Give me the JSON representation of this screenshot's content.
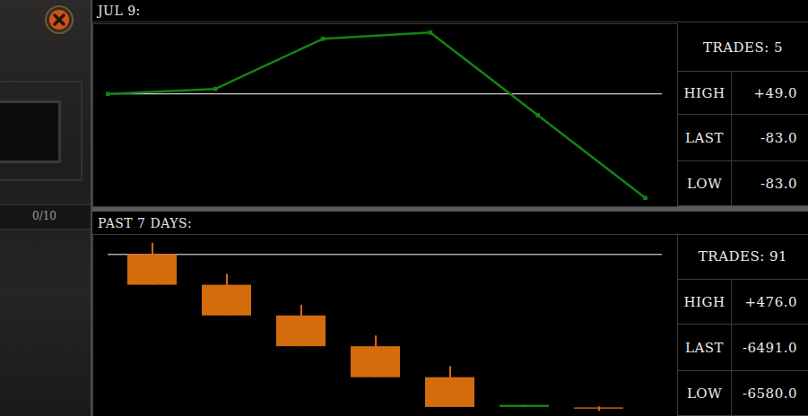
{
  "sidebar": {
    "counter": "0/10"
  },
  "chart_data": [
    {
      "type": "line",
      "title": "JUL 9:",
      "x": [
        0,
        1,
        2,
        3,
        4,
        5
      ],
      "values": [
        0,
        4,
        44,
        49,
        -17,
        -83
      ],
      "xlim": [
        -0.14,
        5.3
      ],
      "xticks": [],
      "ylim": [
        -90,
        56
      ],
      "yticks": [
        0
      ],
      "grid": true,
      "tick_labels": false,
      "color": "#138413",
      "marker": "square"
    },
    {
      "type": "candlestick",
      "title": "PAST 7 DAYS:",
      "categories": [
        null,
        null,
        null,
        null,
        null,
        null,
        null
      ],
      "open": [
        0,
        -1290,
        -2580,
        -3870,
        -5170,
        -6420,
        -6440
      ],
      "close": [
        -1290,
        -2580,
        -3870,
        -5170,
        -6420,
        -6330,
        -6491
      ],
      "high": [
        476,
        -836,
        -2130,
        -3420,
        -4710,
        -6330,
        -6400
      ],
      "low": [
        -1290,
        -2580,
        -3870,
        -5170,
        -6420,
        -6420,
        -6580
      ],
      "colors": [
        "#d46b0d",
        "#d46b0d",
        "#d46b0d",
        "#d46b0d",
        "#d46b0d",
        "#168a16",
        "#d46b0d"
      ],
      "ylim": [
        -6800,
        840
      ],
      "yticks": [
        0
      ],
      "grid": true,
      "tick_labels": false
    }
  ],
  "tables": [
    {
      "trades": "TRADES: 5",
      "rows": [
        [
          "HIGH",
          "+49.0"
        ],
        [
          "LAST",
          "-83.0"
        ],
        [
          "LOW",
          "-83.0"
        ]
      ]
    },
    {
      "trades": "TRADES: 91",
      "rows": [
        [
          "HIGH",
          "+476.0"
        ],
        [
          "LAST",
          "-6491.0"
        ],
        [
          "LOW",
          "-6580.0"
        ]
      ]
    }
  ]
}
